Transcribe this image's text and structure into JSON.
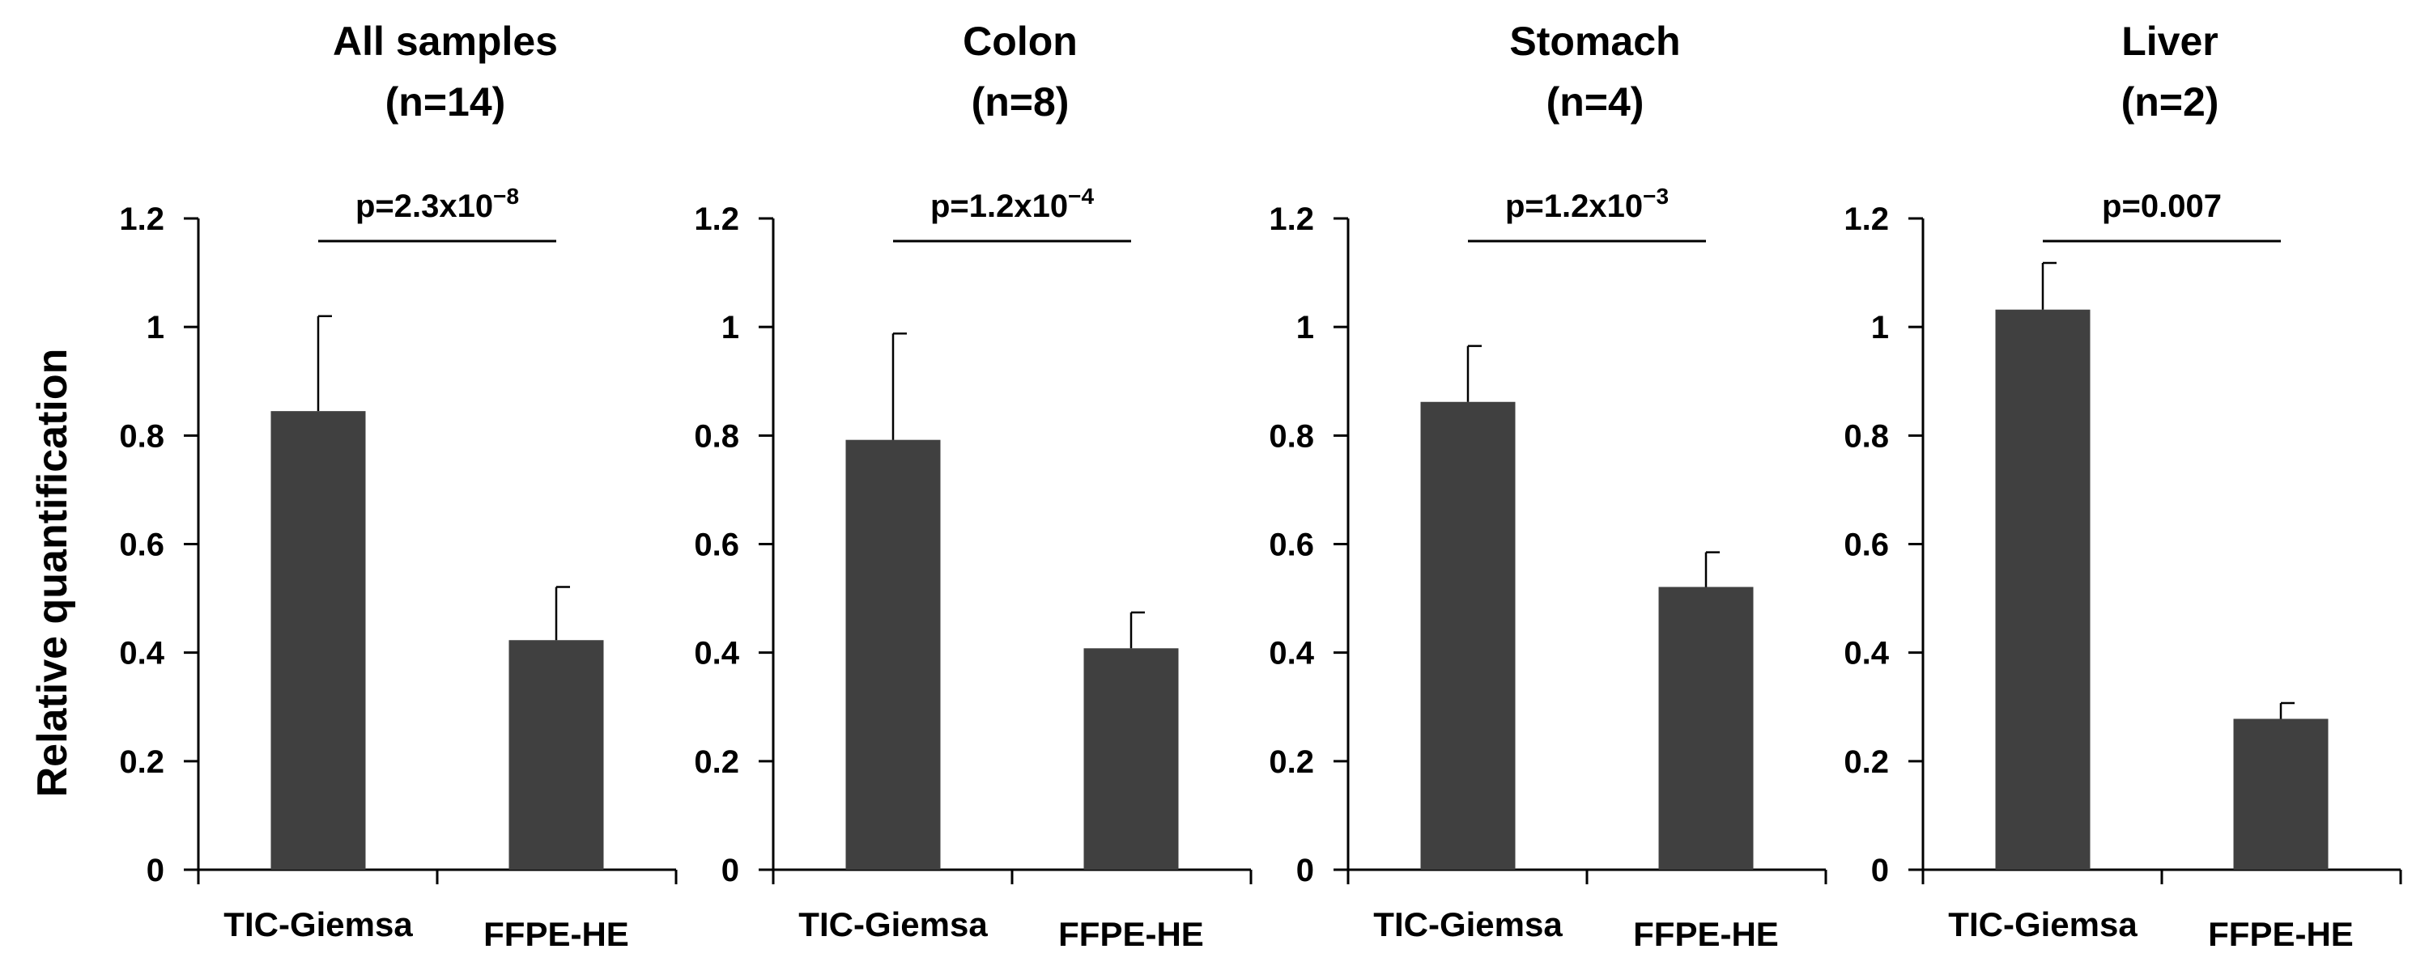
{
  "figure": {
    "ylabel": "Relative quantification"
  },
  "chart_data": [
    {
      "type": "bar",
      "title": "All samples",
      "subtitle": "(n=14)",
      "categories": [
        "TIC-Giemsa",
        "FFPE-HE"
      ],
      "values": [
        0.845,
        0.423
      ],
      "errors": [
        0.175,
        0.098
      ],
      "ylim": [
        0,
        1.2
      ],
      "yticks": [
        "0",
        "0.2",
        "0.4",
        "0.6",
        "0.8",
        "1",
        "1.2"
      ],
      "p_base": "p=2.3x10",
      "p_exp": "−8",
      "bar_color": "#404040"
    },
    {
      "type": "bar",
      "title": "Colon",
      "subtitle": "(n=8)",
      "categories": [
        "TIC-Giemsa",
        "FFPE-HE"
      ],
      "values": [
        0.792,
        0.408
      ],
      "errors": [
        0.196,
        0.066
      ],
      "ylim": [
        0,
        1.2
      ],
      "yticks": [
        "0",
        "0.2",
        "0.4",
        "0.6",
        "0.8",
        "1",
        "1.2"
      ],
      "p_base": "p=1.2x10",
      "p_exp": "−4",
      "bar_color": "#404040"
    },
    {
      "type": "bar",
      "title": "Stomach",
      "subtitle": "(n=4)",
      "categories": [
        "TIC-Giemsa",
        "FFPE-HE"
      ],
      "values": [
        0.862,
        0.521
      ],
      "errors": [
        0.103,
        0.064
      ],
      "ylim": [
        0,
        1.2
      ],
      "yticks": [
        "0",
        "0.2",
        "0.4",
        "0.6",
        "0.8",
        "1",
        "1.2"
      ],
      "p_base": "p=1.2x10",
      "p_exp": "−3",
      "bar_color": "#404040"
    },
    {
      "type": "bar",
      "title": "Liver",
      "subtitle": "(n=2)",
      "categories": [
        "TIC-Giemsa",
        "FFPE-HE"
      ],
      "values": [
        1.032,
        0.278
      ],
      "errors": [
        0.086,
        0.029
      ],
      "ylim": [
        0,
        1.2
      ],
      "yticks": [
        "0",
        "0.2",
        "0.4",
        "0.6",
        "0.8",
        "1",
        "1.2"
      ],
      "p_base": "p=0.007",
      "p_exp": "",
      "bar_color": "#404040"
    }
  ]
}
